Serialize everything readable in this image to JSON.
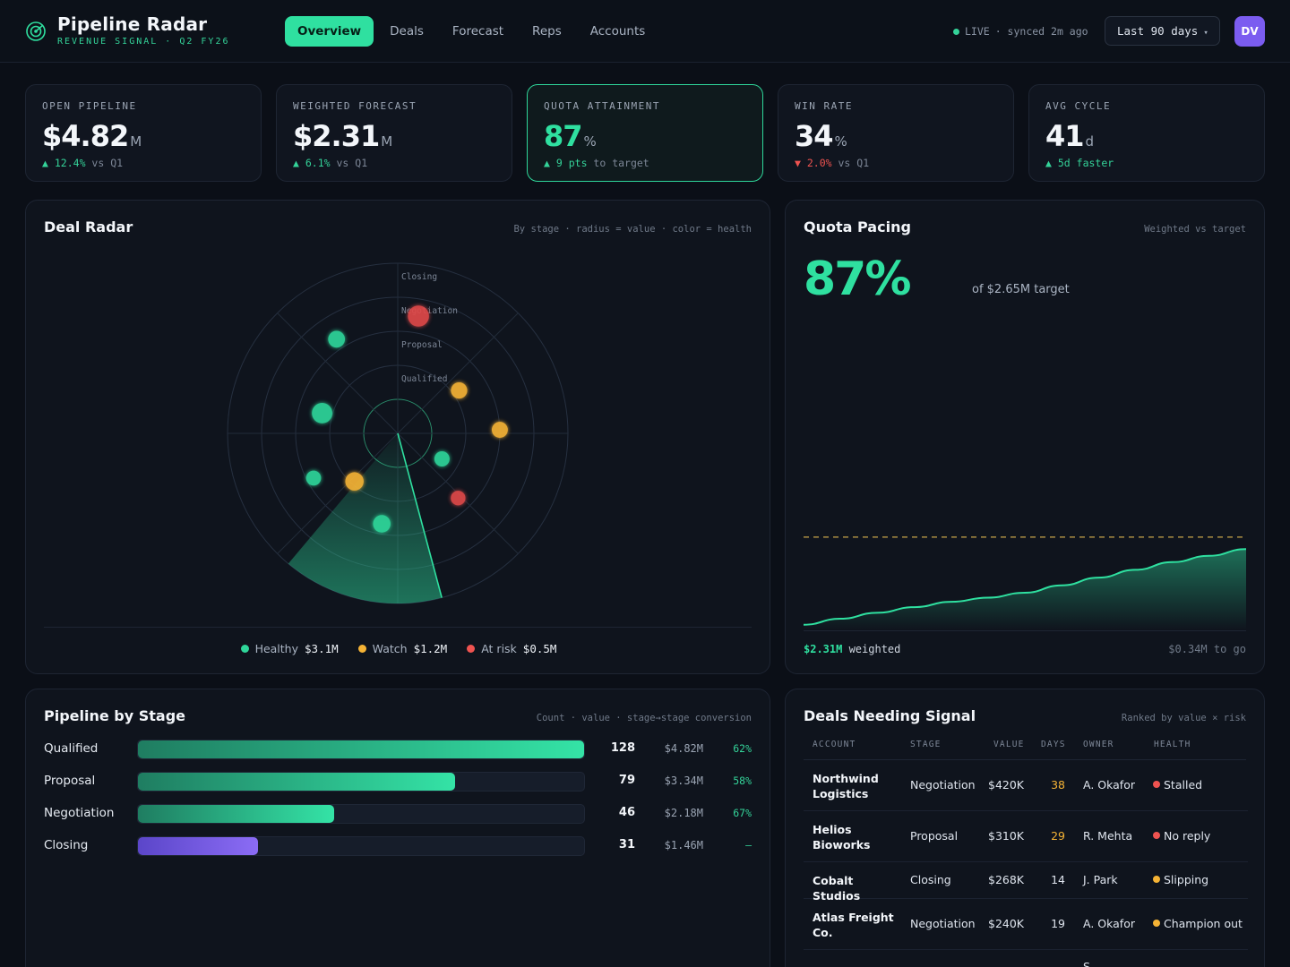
{
  "brand": {
    "title": "Pipeline Radar",
    "subtitle": "REVENUE SIGNAL · Q2 FY26"
  },
  "nav": {
    "tabs": [
      {
        "label": "Overview",
        "active": true
      },
      {
        "label": "Deals",
        "active": false
      },
      {
        "label": "Forecast",
        "active": false
      },
      {
        "label": "Reps",
        "active": false
      },
      {
        "label": "Accounts",
        "active": false
      }
    ]
  },
  "status": {
    "live": "LIVE",
    "synced": "· synced 2m ago"
  },
  "range": {
    "label": "Last 90 days",
    "caret": "▾"
  },
  "user": {
    "initials": "DV"
  },
  "kpis": [
    {
      "label": "OPEN PIPELINE",
      "value": "$4.82",
      "unit": "M",
      "arrow": "▲",
      "delta": "12.4%",
      "trend": "up",
      "compare": " vs Q1"
    },
    {
      "label": "WEIGHTED FORECAST",
      "value": "$2.31",
      "unit": "M",
      "arrow": "▲",
      "delta": "6.1%",
      "trend": "up",
      "compare": " vs Q1"
    },
    {
      "label": "QUOTA ATTAINMENT",
      "value": "87",
      "unit": "%",
      "arrow": "▲",
      "delta": "9 pts",
      "trend": "up",
      "compare": " to target"
    },
    {
      "label": "WIN RATE",
      "value": "34",
      "unit": "%",
      "arrow": "▼",
      "delta": "2.0%",
      "trend": "down",
      "compare": " vs Q1"
    },
    {
      "label": "AVG CYCLE",
      "value": "41",
      "unit": "d",
      "arrow": "▲",
      "delta": "5d faster",
      "trend": "up",
      "compare": ""
    }
  ],
  "radar": {
    "title": "Deal Radar",
    "hint": "By stage · radius = value · color = health",
    "rings": [
      "Closing",
      "Negotiation",
      "Proposal",
      "Qualified"
    ],
    "deals": [
      {
        "ring": 3.5,
        "angle": 10,
        "value": 420,
        "health": "at-risk"
      },
      {
        "ring": 3.3,
        "angle": -33,
        "value": 200,
        "health": "healthy"
      },
      {
        "ring": 2.3,
        "angle": -75,
        "value": 380,
        "health": "healthy"
      },
      {
        "ring": 2.2,
        "angle": 55,
        "value": 180,
        "health": "watch"
      },
      {
        "ring": 3.0,
        "angle": 88,
        "value": 170,
        "health": "watch"
      },
      {
        "ring": 2.8,
        "angle": -118,
        "value": 130,
        "health": "healthy"
      },
      {
        "ring": 1.9,
        "angle": -138,
        "value": 270,
        "health": "watch"
      },
      {
        "ring": 1.5,
        "angle": 120,
        "value": 140,
        "health": "healthy"
      },
      {
        "ring": 2.6,
        "angle": 137,
        "value": 120,
        "health": "at-risk"
      },
      {
        "ring": 2.7,
        "angle": -170,
        "value": 230,
        "health": "healthy"
      }
    ],
    "legend": [
      {
        "label": "Healthy",
        "value": "$3.1M",
        "color": "#2fd69a"
      },
      {
        "label": "Watch",
        "value": "$1.2M",
        "color": "#f5b335"
      },
      {
        "label": "At risk",
        "value": "$0.5M",
        "color": "#ef5350"
      }
    ]
  },
  "pacing": {
    "title": "Quota Pacing",
    "hint": "Weighted vs target",
    "big": "87%",
    "of": "of $2.65M target",
    "weighted": "$2.31M",
    "weighted_label": " weighted",
    "to_go": "$0.34M to go"
  },
  "chart_data": {
    "type": "area",
    "x": [
      0,
      1,
      2,
      3,
      4,
      5,
      6,
      7,
      8,
      9,
      10,
      11,
      12
    ],
    "series": [
      {
        "values": [
          0.16,
          0.33,
          0.5,
          0.66,
          0.81,
          0.93,
          1.07,
          1.28,
          1.5,
          1.72,
          1.94,
          2.12,
          2.31
        ]
      },
      {
        "values": [
          2.65,
          2.65,
          2.65,
          2.65,
          2.65,
          2.65,
          2.65,
          2.65,
          2.65,
          2.65,
          2.65,
          2.65,
          2.65
        ]
      }
    ],
    "ylim": [
      0,
      2.8
    ],
    "grid": false
  },
  "stages": {
    "title": "Pipeline by Stage",
    "hint": "Count · value · stage→stage conversion",
    "rows": [
      {
        "name": "Qualified",
        "count": "128",
        "value": "$4.82M",
        "conv": "62%",
        "fill": 1.0,
        "color": "green"
      },
      {
        "name": "Proposal",
        "count": "79",
        "value": "$3.34M",
        "conv": "58%",
        "fill": 0.71,
        "color": "green"
      },
      {
        "name": "Negotiation",
        "count": "46",
        "value": "$2.18M",
        "conv": "67%",
        "fill": 0.44,
        "color": "green"
      },
      {
        "name": "Closing",
        "count": "31",
        "value": "$1.46M",
        "conv": "–",
        "fill": 0.27,
        "color": "purple"
      }
    ]
  },
  "deals": {
    "title": "Deals Needing Signal",
    "hint": "Ranked by value × risk",
    "columns": [
      "ACCOUNT",
      "STAGE",
      "VALUE",
      "DAYS",
      "OWNER",
      "HEALTH"
    ],
    "rows": [
      {
        "account": "Northwind Logistics",
        "stage": "Negotiation",
        "value": "$420K",
        "days": "38",
        "owner": "A. Okafor",
        "health": "Stalled",
        "tone": "red",
        "daysWarn": true
      },
      {
        "account": "Helios Bioworks",
        "stage": "Proposal",
        "value": "$310K",
        "days": "29",
        "owner": "R. Mehta",
        "health": "No reply",
        "tone": "red",
        "daysWarn": true
      },
      {
        "account": "Cobalt Studios",
        "stage": "Closing",
        "value": "$268K",
        "days": "14",
        "owner": "J. Park",
        "health": "Slipping",
        "tone": "amber",
        "daysWarn": false
      },
      {
        "account": "Atlas Freight Co.",
        "stage": "Negotiation",
        "value": "$240K",
        "days": "19",
        "owner": "A. Okafor",
        "health": "Champion out",
        "tone": "amber",
        "daysWarn": false
      },
      {
        "account": "",
        "stage": "",
        "value": "",
        "days": "",
        "owner": "S.",
        "health": "",
        "tone": "",
        "daysWarn": false
      }
    ]
  }
}
